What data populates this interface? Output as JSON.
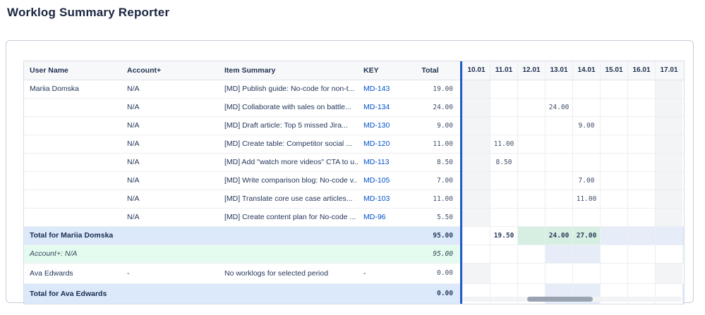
{
  "page": {
    "title": "Worklog Summary Reporter"
  },
  "colors": {
    "divider_blue": "#1d5cc9",
    "issue_link_blue": "#0052cc",
    "user_total_row_bg": "#dbe9fb",
    "account_total_row_bg": "#e3fcef",
    "nonworking_column_shade": "#f3f4f6",
    "total_highlight_green": "#d7efe2",
    "total_highlight_blue": "#e6edf8"
  },
  "table": {
    "columns": [
      "User Name",
      "Account+",
      "Item Summary",
      "KEY",
      "Total"
    ],
    "dates": [
      "10.01",
      "11.01",
      "12.01",
      "13.01",
      "14.01",
      "15.01",
      "16.01",
      "17.01"
    ],
    "rows": [
      {
        "type": "item",
        "user": "Mariia Domska",
        "account": "N/A",
        "summary": "[MD] Publish guide: No-code for non-t...",
        "key": "MD-143",
        "total": "19.00",
        "cells": {}
      },
      {
        "type": "item",
        "user": "",
        "account": "N/A",
        "summary": "[MD] Collaborate with sales on battle...",
        "key": "MD-134",
        "total": "24.00",
        "cells": {
          "13.01": "24.00"
        }
      },
      {
        "type": "item",
        "user": "",
        "account": "N/A",
        "summary": "[MD] Draft article: Top 5 missed Jira...",
        "key": "MD-130",
        "total": "9.00",
        "cells": {
          "14.01": "9.00"
        }
      },
      {
        "type": "item",
        "user": "",
        "account": "N/A",
        "summary": "[MD] Create table: Competitor social ...",
        "key": "MD-120",
        "total": "11.00",
        "cells": {
          "11.01": "11.00"
        }
      },
      {
        "type": "item",
        "user": "",
        "account": "N/A",
        "summary": "[MD] Add \"watch more videos\" CTA to u...",
        "key": "MD-113",
        "total": "8.50",
        "cells": {
          "11.01": "8.50"
        }
      },
      {
        "type": "item",
        "user": "",
        "account": "N/A",
        "summary": "[MD] Write comparison blog: No-code v...",
        "key": "MD-105",
        "total": "7.00",
        "cells": {
          "14.01": "7.00"
        }
      },
      {
        "type": "item",
        "user": "",
        "account": "N/A",
        "summary": "[MD] Translate core use case articles...",
        "key": "MD-103",
        "total": "11.00",
        "cells": {
          "14.01": "11.00"
        }
      },
      {
        "type": "item",
        "user": "",
        "account": "N/A",
        "summary": "[MD] Create content plan for No-code ...",
        "key": "MD-96",
        "total": "5.50",
        "cells": {}
      },
      {
        "type": "user-total",
        "label": "Total for Mariia Domska",
        "total": "95.00",
        "cells": {
          "11.01": "19.50",
          "13.01": "24.00",
          "14.01": "27.00"
        },
        "highlights": {
          "12.01": "green",
          "13.01": "green",
          "14.01": "green",
          "15.01": "blue",
          "16.01": "blue",
          "17.01": "blue"
        }
      },
      {
        "type": "account-total",
        "label": "Account+: N/A",
        "total": "95.00",
        "cells": {},
        "highlights": {
          "13.01": "blue",
          "14.01": "blue"
        }
      },
      {
        "type": "item",
        "user": "Ava Edwards",
        "account": "-",
        "summary": "No worklogs for selected period",
        "key": "-",
        "total": "0.00",
        "cells": {}
      },
      {
        "type": "user-total",
        "label": "Total for Ava Edwards",
        "total": "0.00",
        "cells": {},
        "highlights": {
          "13.01": "blue",
          "14.01": "blue"
        }
      }
    ]
  }
}
